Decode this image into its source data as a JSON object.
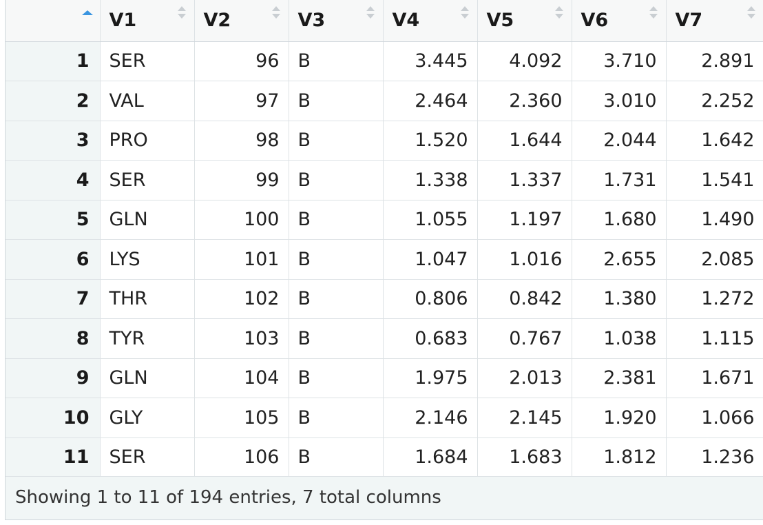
{
  "table": {
    "columns": [
      {
        "label": "",
        "align": "right"
      },
      {
        "label": "V1",
        "align": "left"
      },
      {
        "label": "V2",
        "align": "right"
      },
      {
        "label": "V3",
        "align": "left"
      },
      {
        "label": "V4",
        "align": "right"
      },
      {
        "label": "V5",
        "align": "right"
      },
      {
        "label": "V6",
        "align": "right"
      },
      {
        "label": "V7",
        "align": "right"
      }
    ],
    "sort_column": "row-number",
    "sort_direction": "ascending",
    "rows": [
      [
        "1",
        "SER",
        "96",
        "B",
        "3.445",
        "4.092",
        "3.710",
        "2.891"
      ],
      [
        "2",
        "VAL",
        "97",
        "B",
        "2.464",
        "2.360",
        "3.010",
        "2.252"
      ],
      [
        "3",
        "PRO",
        "98",
        "B",
        "1.520",
        "1.644",
        "2.044",
        "1.642"
      ],
      [
        "4",
        "SER",
        "99",
        "B",
        "1.338",
        "1.337",
        "1.731",
        "1.541"
      ],
      [
        "5",
        "GLN",
        "100",
        "B",
        "1.055",
        "1.197",
        "1.680",
        "1.490"
      ],
      [
        "6",
        "LYS",
        "101",
        "B",
        "1.047",
        "1.016",
        "2.655",
        "2.085"
      ],
      [
        "7",
        "THR",
        "102",
        "B",
        "0.806",
        "0.842",
        "1.380",
        "1.272"
      ],
      [
        "8",
        "TYR",
        "103",
        "B",
        "0.683",
        "0.767",
        "1.038",
        "1.115"
      ],
      [
        "9",
        "GLN",
        "104",
        "B",
        "1.975",
        "2.013",
        "2.381",
        "1.671"
      ],
      [
        "10",
        "GLY",
        "105",
        "B",
        "2.146",
        "2.145",
        "1.920",
        "1.066"
      ],
      [
        "11",
        "SER",
        "106",
        "B",
        "1.684",
        "1.683",
        "1.812",
        "1.236"
      ]
    ]
  },
  "footer": {
    "status": "Showing 1 to 11 of 194 entries, 7 total columns"
  },
  "colors": {
    "sort_active": "#3a95e0",
    "sort_inactive": "#c9ced2",
    "rownum_bg": "#f1f6f6",
    "header_bg": "#f7f8f8",
    "grid_line": "#dde2e5"
  }
}
